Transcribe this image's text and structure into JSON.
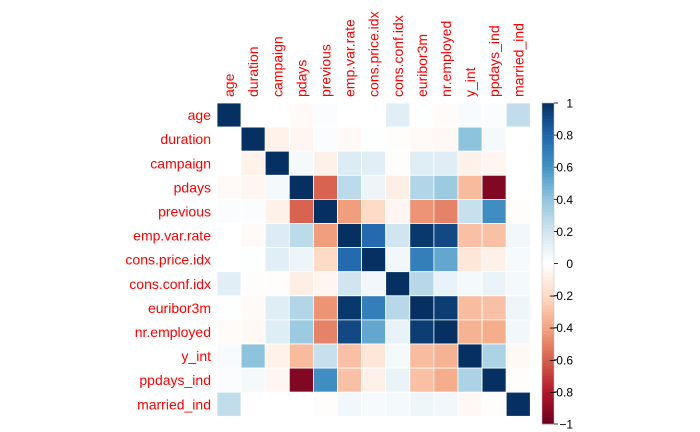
{
  "colors": {
    "label": "#ff0000",
    "tick": "#000000",
    "grid": "#ffffff",
    "background": "#ffffff",
    "scale": [
      "#67001f",
      "#b2182b",
      "#d6604d",
      "#f4a582",
      "#fddbc7",
      "#ffffff",
      "#d1e5f0",
      "#92c5de",
      "#4393c3",
      "#2166ac",
      "#053061"
    ]
  },
  "chart_data": {
    "type": "heatmap",
    "title": "",
    "variables": [
      "age",
      "duration",
      "campaign",
      "pdays",
      "previous",
      "emp.var.rate",
      "cons.price.idx",
      "cons.conf.idx",
      "euribor3m",
      "nr.employed",
      "y_int",
      "ppdays_ind",
      "married_ind"
    ],
    "matrix": [
      [
        1.0,
        0.0,
        0.0,
        -0.03,
        0.02,
        0.0,
        0.0,
        0.13,
        0.01,
        -0.02,
        0.03,
        0.02,
        0.25
      ],
      [
        0.0,
        1.0,
        -0.07,
        -0.05,
        0.02,
        -0.03,
        0.01,
        -0.01,
        -0.03,
        -0.04,
        0.41,
        0.05,
        0.0
      ],
      [
        0.0,
        -0.07,
        1.0,
        0.05,
        -0.08,
        0.15,
        0.13,
        -0.01,
        0.14,
        0.14,
        -0.07,
        -0.05,
        0.0
      ],
      [
        -0.03,
        -0.05,
        0.05,
        1.0,
        -0.59,
        0.27,
        0.08,
        -0.09,
        0.3,
        0.37,
        -0.32,
        -0.93,
        0.0
      ],
      [
        0.02,
        0.02,
        -0.08,
        -0.59,
        1.0,
        -0.42,
        -0.2,
        -0.05,
        -0.45,
        -0.5,
        0.23,
        0.62,
        -0.01
      ],
      [
        0.0,
        -0.03,
        0.15,
        0.27,
        -0.42,
        1.0,
        0.78,
        0.2,
        0.97,
        0.91,
        -0.3,
        -0.3,
        0.06
      ],
      [
        0.0,
        0.01,
        0.13,
        0.08,
        -0.2,
        0.78,
        1.0,
        0.06,
        0.69,
        0.52,
        -0.14,
        -0.08,
        0.04
      ],
      [
        0.13,
        -0.01,
        -0.01,
        -0.09,
        -0.05,
        0.2,
        0.06,
        1.0,
        0.28,
        0.1,
        0.05,
        0.09,
        0.05
      ],
      [
        0.01,
        -0.03,
        0.14,
        0.3,
        -0.45,
        0.97,
        0.69,
        0.28,
        1.0,
        0.95,
        -0.31,
        -0.3,
        0.07
      ],
      [
        -0.02,
        -0.04,
        0.14,
        0.37,
        -0.5,
        0.91,
        0.52,
        0.1,
        0.95,
        1.0,
        -0.35,
        -0.37,
        0.06
      ],
      [
        0.03,
        0.41,
        -0.07,
        -0.32,
        0.23,
        -0.3,
        -0.14,
        0.05,
        -0.31,
        -0.35,
        1.0,
        0.32,
        -0.04
      ],
      [
        0.02,
        0.05,
        -0.05,
        -0.93,
        0.62,
        -0.3,
        -0.08,
        0.09,
        -0.3,
        -0.37,
        0.32,
        1.0,
        -0.01
      ],
      [
        0.25,
        0.0,
        0.0,
        0.0,
        -0.01,
        0.06,
        0.04,
        0.05,
        0.07,
        0.06,
        -0.04,
        -0.01,
        1.0
      ]
    ],
    "colorbar": {
      "range": [
        -1,
        1
      ],
      "ticks": [
        1,
        0.8,
        0.6,
        0.4,
        0.2,
        0,
        -0.2,
        -0.4,
        -0.6,
        -0.8,
        -1
      ],
      "tick_labels": [
        "1",
        "0.8",
        "0.6",
        "0.4",
        "0.2",
        "0",
        "−0.2",
        "−0.4",
        "−0.6",
        "−0.8",
        "−1"
      ]
    },
    "legend_position": "right",
    "grid": true
  }
}
